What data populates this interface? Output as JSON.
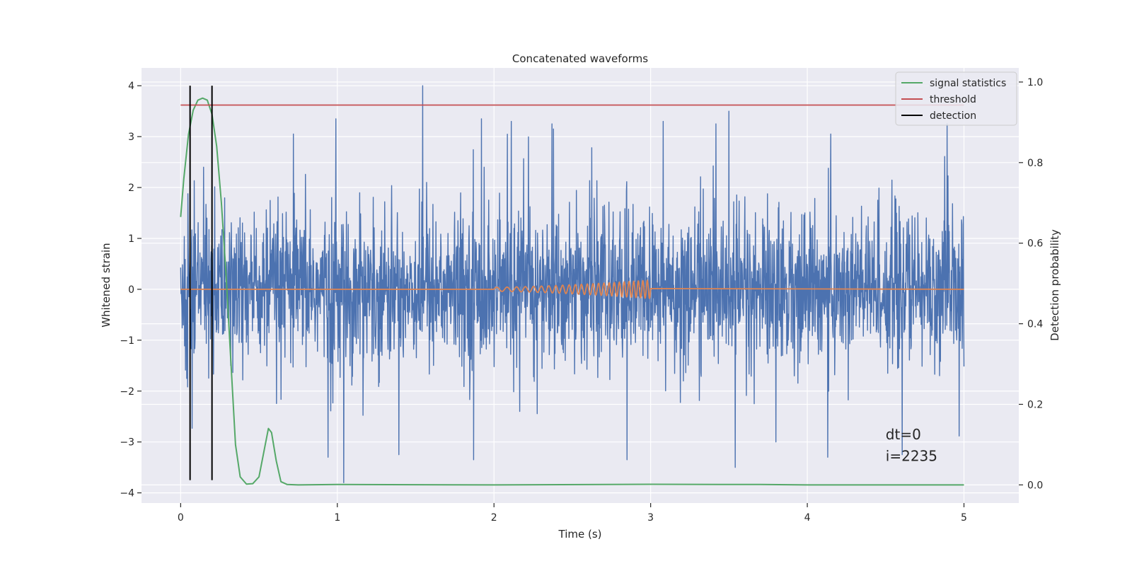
{
  "chart_data": {
    "type": "line",
    "title": "Concatenated waveforms",
    "xlabel": "Time (s)",
    "ylabel": "Whitened strain",
    "ylabel_right": "Detection probability",
    "xlim": [
      -0.25,
      5.35
    ],
    "ylim": [
      -4.2,
      4.35
    ],
    "ylim_right": [
      -0.045,
      1.035
    ],
    "xticks": [
      0,
      1,
      2,
      3,
      4,
      5
    ],
    "yticks": [
      -4,
      -3,
      -2,
      -1,
      0,
      1,
      2,
      3,
      4
    ],
    "yticks_right": [
      0.0,
      0.2,
      0.4,
      0.6,
      0.8,
      1.0
    ],
    "xtick_labels": [
      "0",
      "1",
      "2",
      "3",
      "4",
      "5"
    ],
    "ytick_labels": [
      "−4",
      "−3",
      "−2",
      "−1",
      "0",
      "1",
      "2",
      "3",
      "4"
    ],
    "ytick_right_labels": [
      "0.0",
      "0.2",
      "0.4",
      "0.6",
      "0.8",
      "1.0"
    ],
    "grid": true,
    "legend_position": "upper right",
    "colors": {
      "strain": "#4c72b0",
      "template": "#dd8452",
      "signal_statistics": "#55a868",
      "threshold": "#c44e52",
      "detection": "#000000",
      "background": "#eaeaf2",
      "grid": "#ffffff"
    },
    "series": [
      {
        "key": "strain",
        "axis": "left",
        "noise": {
          "x_start": 0.0,
          "x_end": 5.0,
          "typical_range": [
            -1.4,
            1.4
          ],
          "max_peak": 4.0,
          "min_trough": -3.8
        },
        "peaks": [
          [
            1.545,
            4.0
          ],
          [
            0.99,
            3.35
          ],
          [
            1.92,
            3.35
          ],
          [
            3.5,
            3.5
          ],
          [
            2.11,
            3.3
          ],
          [
            3.08,
            3.3
          ],
          [
            2.38,
            3.15
          ],
          [
            4.15,
            3.05
          ],
          [
            0.72,
            3.05
          ]
        ],
        "troughs": [
          [
            1.04,
            -3.8
          ],
          [
            1.87,
            -3.35
          ],
          [
            2.85,
            -3.35
          ],
          [
            3.54,
            -3.5
          ],
          [
            0.94,
            -3.3
          ],
          [
            4.13,
            -3.3
          ],
          [
            3.8,
            -3.0
          ]
        ]
      },
      {
        "key": "template",
        "axis": "left",
        "chirp": {
          "x_start": 2.0,
          "x_end": 3.0,
          "amp_start": 0.04,
          "amp_end": 0.18,
          "freq_start": 14,
          "freq_end": 36
        }
      },
      {
        "key": "signal_statistics",
        "name": "signal statistics",
        "axis": "right",
        "x": [
          0,
          0.02,
          0.05,
          0.08,
          0.11,
          0.14,
          0.17,
          0.2,
          0.23,
          0.26,
          0.29,
          0.32,
          0.35,
          0.38,
          0.42,
          0.46,
          0.5,
          0.53,
          0.56,
          0.58,
          0.61,
          0.64,
          0.68,
          0.75,
          1.0,
          2.0,
          3.0,
          3.7,
          4.0,
          5.0
        ],
        "y": [
          0.665,
          0.76,
          0.87,
          0.93,
          0.955,
          0.96,
          0.955,
          0.92,
          0.84,
          0.7,
          0.52,
          0.31,
          0.1,
          0.02,
          0.002,
          0.003,
          0.02,
          0.08,
          0.14,
          0.13,
          0.06,
          0.008,
          0.001,
          0.0,
          0.001,
          0.0,
          0.0015,
          0.001,
          0.0,
          0.0
        ]
      },
      {
        "key": "threshold",
        "name": "threshold",
        "axis": "left",
        "x": [
          0,
          5
        ],
        "y": [
          3.62,
          3.62
        ]
      },
      {
        "key": "detection",
        "name": "detection",
        "axis": "left",
        "x": [
          0.06,
          0.2
        ],
        "y_range": [
          -3.75,
          4.0
        ]
      }
    ],
    "annotations": [
      {
        "text": "dt=0",
        "x": 4.5,
        "y": -2.95
      },
      {
        "text": "i=2235",
        "x": 4.5,
        "y": -3.37
      }
    ],
    "legend": [
      {
        "key": "signal_statistics",
        "label": "signal statistics"
      },
      {
        "key": "threshold",
        "label": "threshold"
      },
      {
        "key": "detection",
        "label": "detection"
      }
    ]
  }
}
